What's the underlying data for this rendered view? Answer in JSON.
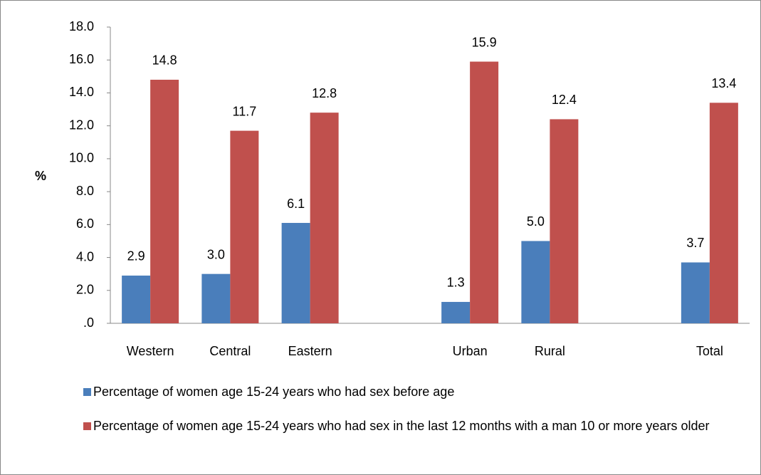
{
  "chart_data": {
    "type": "bar",
    "y_label": "%",
    "categories": [
      "Western",
      "Central",
      "Eastern",
      null,
      "Urban",
      "Rural",
      null,
      "Total"
    ],
    "series": [
      {
        "name": "Percentage of women age 15-24 years who had sex before age",
        "color": "#4a7ebb",
        "values": [
          2.9,
          3.0,
          6.1,
          null,
          1.3,
          5.0,
          null,
          3.7
        ],
        "value_labels": [
          "2.9",
          "3.0",
          "6.1",
          null,
          "1.3",
          "5.0",
          null,
          "3.7"
        ]
      },
      {
        "name": "Percentage of women age 15-24 years who had sex in the last 12 months with a man 10 or more years older",
        "color": "#c0504d",
        "values": [
          14.8,
          11.7,
          12.8,
          null,
          15.9,
          12.4,
          null,
          13.4
        ],
        "value_labels": [
          "14.8",
          "11.7",
          "12.8",
          null,
          "15.9",
          "12.4",
          null,
          "13.4"
        ]
      }
    ],
    "ylim": [
      0,
      18
    ],
    "yticks": [
      {
        "value": 0,
        "label": ".0"
      },
      {
        "value": 2,
        "label": "2.0"
      },
      {
        "value": 4,
        "label": "4.0"
      },
      {
        "value": 6,
        "label": "6.0"
      },
      {
        "value": 8,
        "label": "8.0"
      },
      {
        "value": 10,
        "label": "10.0"
      },
      {
        "value": 12,
        "label": "12.0"
      },
      {
        "value": 14,
        "label": "14.0"
      },
      {
        "value": 16,
        "label": "16.0"
      },
      {
        "value": 18,
        "label": "18.0"
      }
    ],
    "grid": false
  }
}
